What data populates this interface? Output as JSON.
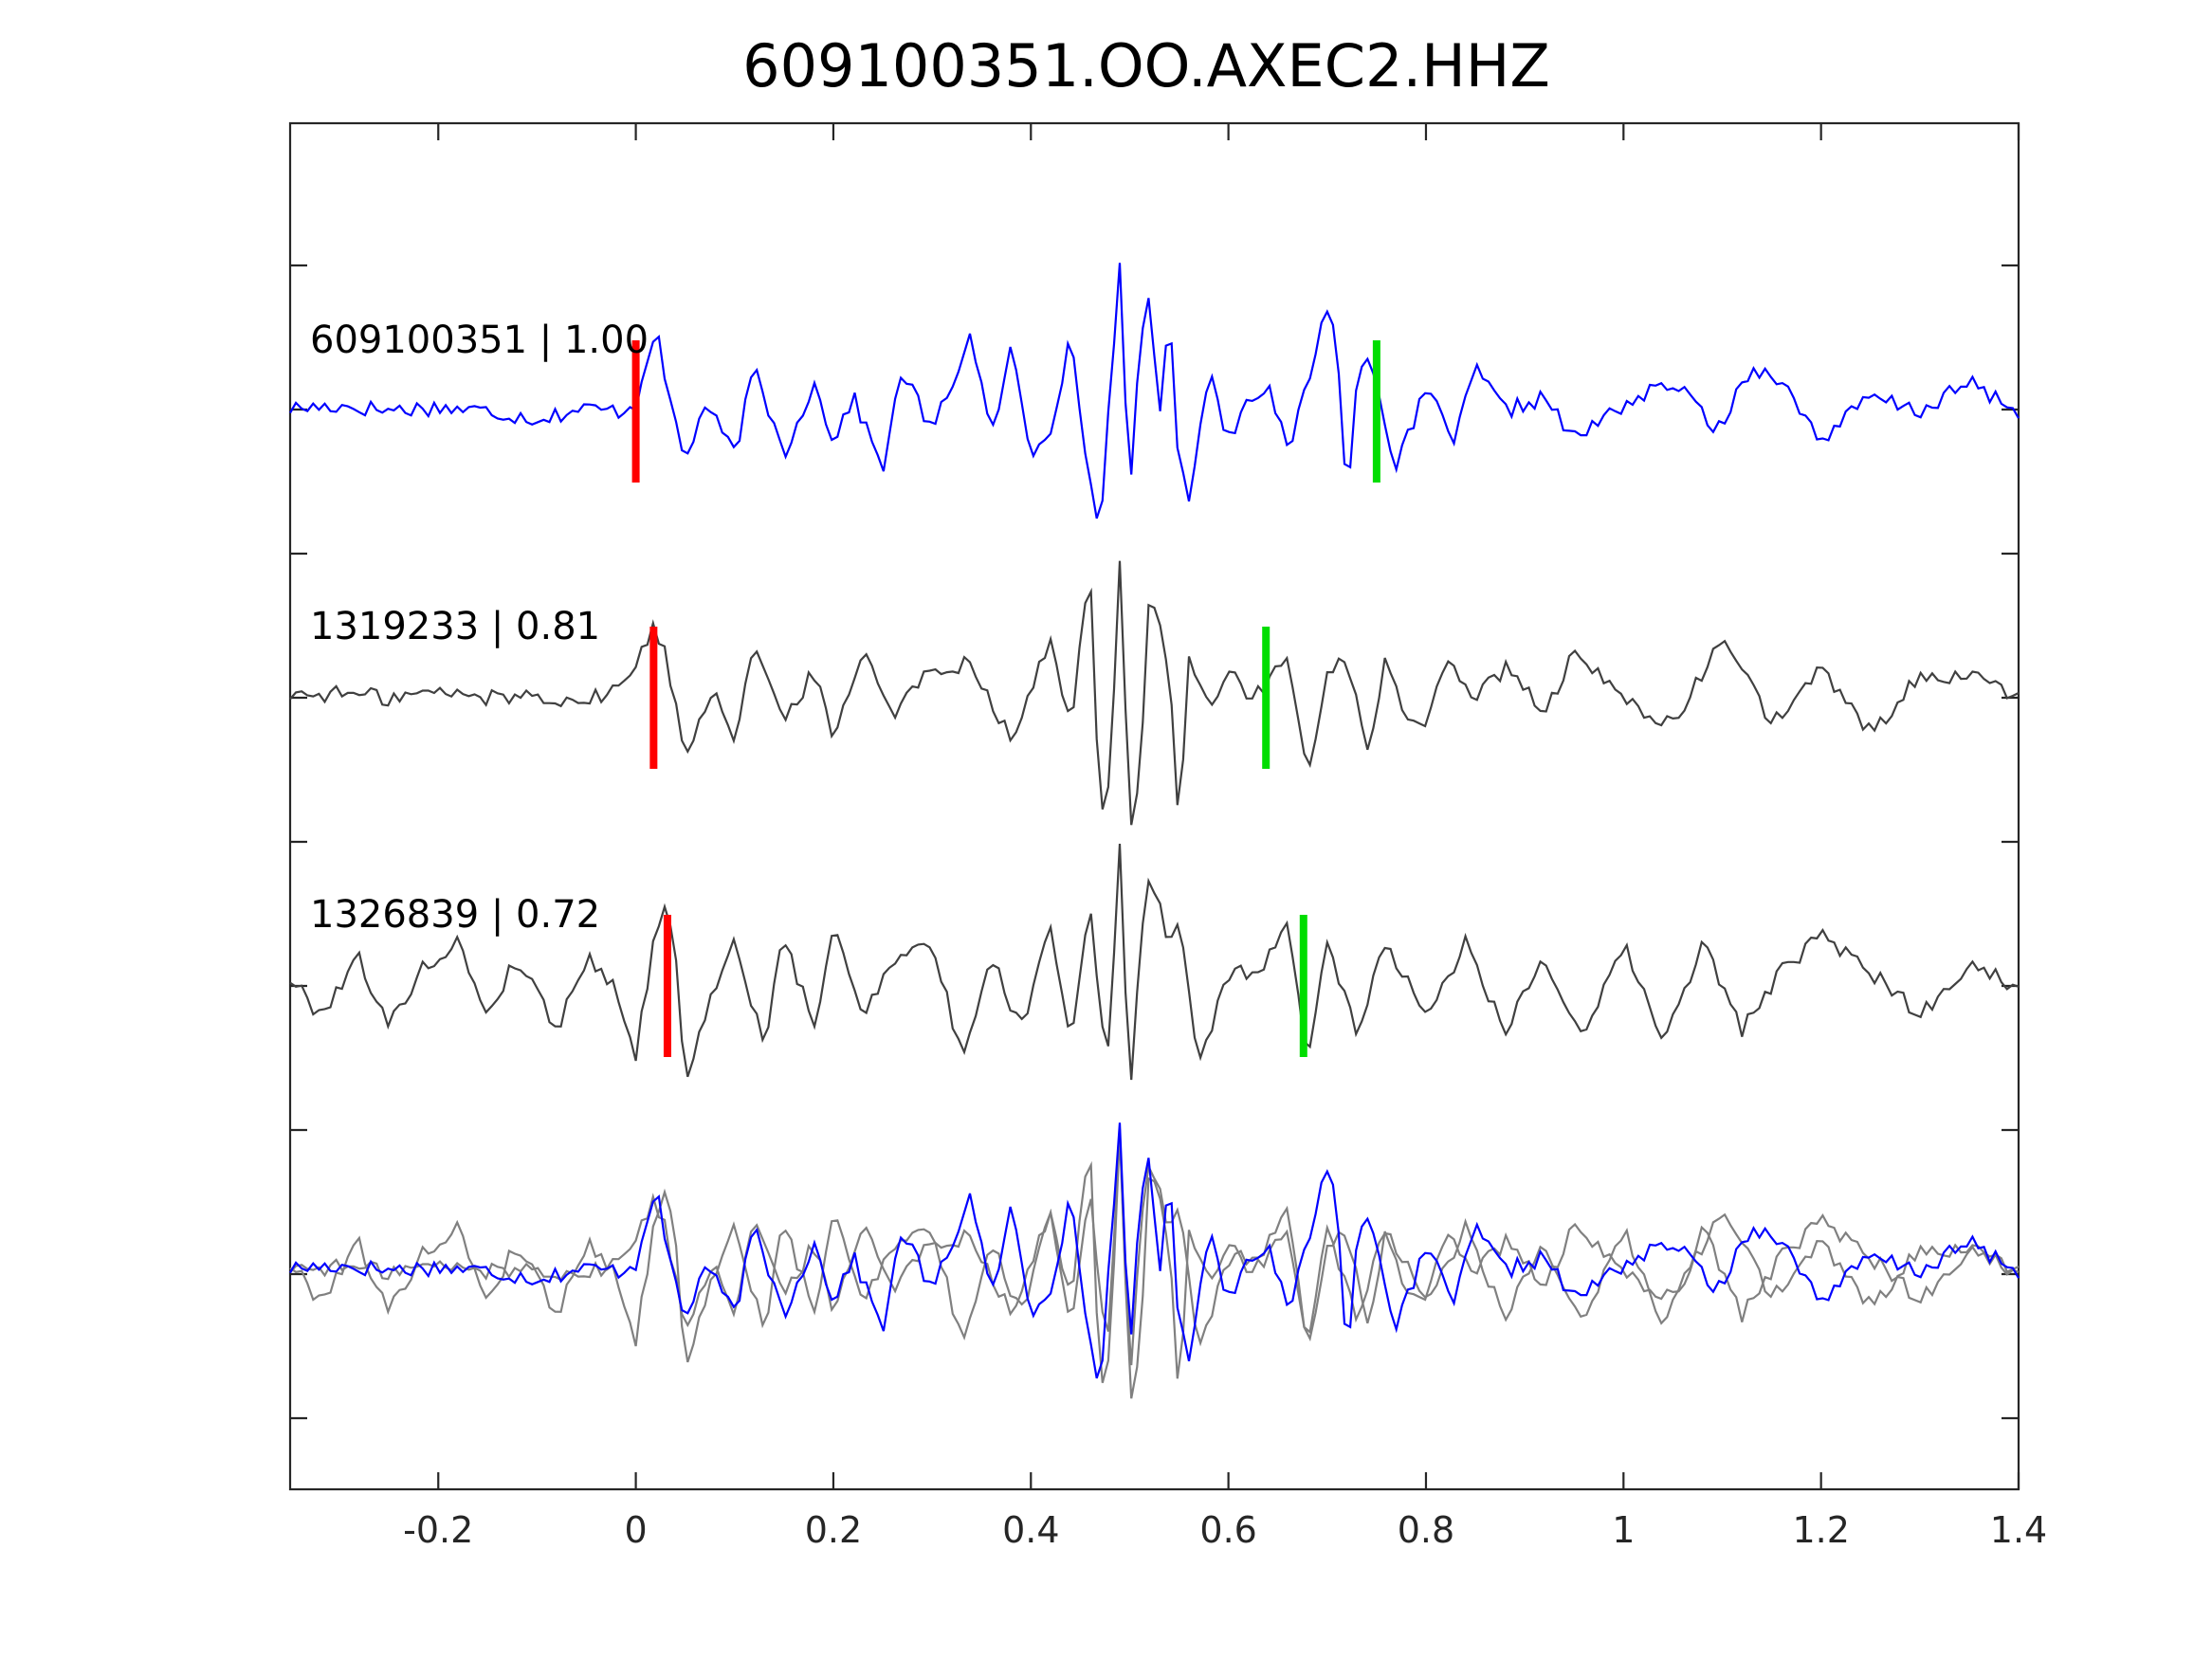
{
  "chart_data": {
    "type": "line",
    "title": "609100351.OO.AXEC2.HHZ",
    "xlabel": "",
    "ylabel": "",
    "xlim": [
      -0.35,
      1.4
    ],
    "x_ticks": [
      -0.2,
      0,
      0.2,
      0.4,
      0.6,
      0.8,
      1,
      1.2,
      1.4
    ],
    "x_tick_labels": [
      "-0.2",
      "0",
      "0.2",
      "0.4",
      "0.6",
      "0.8",
      "1",
      "1.2",
      "1.4"
    ],
    "y_tick_count": 9,
    "grid": false,
    "colors": {
      "primary_trace": "#0000ff",
      "other_trace": "#404040",
      "overlay_other": "#808080",
      "p_pick": "#ff0000",
      "s_pick": "#00dd00",
      "axes": "#262626"
    },
    "traces": [
      {
        "label": "609100351 | 1.00",
        "event_id": "609100351",
        "correlation": 1.0,
        "p_pick": 0.0,
        "s_pick": 0.75,
        "x": [
          -0.35,
          -0.3,
          -0.25,
          -0.2,
          -0.15,
          -0.1,
          -0.05,
          -0.02,
          0,
          0.01,
          0.02,
          0.03,
          0.05,
          0.07,
          0.1,
          0.12,
          0.15,
          0.18,
          0.2,
          0.22,
          0.25,
          0.27,
          0.3,
          0.34,
          0.36,
          0.38,
          0.4,
          0.42,
          0.44,
          0.46,
          0.47,
          0.48,
          0.49,
          0.5,
          0.51,
          0.52,
          0.53,
          0.54,
          0.55,
          0.56,
          0.58,
          0.6,
          0.62,
          0.64,
          0.66,
          0.68,
          0.7,
          0.71,
          0.72,
          0.73,
          0.74,
          0.75,
          0.77,
          0.8,
          0.83,
          0.85,
          0.88,
          0.92,
          0.95,
          1.0,
          1.05,
          1.1,
          1.12,
          1.15,
          1.2,
          1.25,
          1.3,
          1.35,
          1.4
        ],
        "y": [
          0.02,
          0.04,
          0.01,
          0.03,
          0.0,
          -0.05,
          0.02,
          0.0,
          0.05,
          0.35,
          0.6,
          0.2,
          -0.35,
          0.05,
          -0.3,
          0.3,
          -0.3,
          0.2,
          -0.2,
          0.1,
          -0.4,
          0.3,
          -0.15,
          0.55,
          -0.2,
          0.45,
          -0.3,
          -0.1,
          0.5,
          -0.5,
          -0.9,
          0.2,
          1.0,
          -0.7,
          0.5,
          0.8,
          0.0,
          0.7,
          -0.4,
          -0.6,
          0.3,
          -0.2,
          0.1,
          0.2,
          -0.3,
          0.2,
          0.75,
          0.5,
          -0.7,
          0.2,
          0.45,
          0.2,
          -0.4,
          0.15,
          -0.2,
          0.3,
          0.0,
          0.1,
          -0.2,
          0.05,
          0.2,
          -0.15,
          0.25,
          0.3,
          -0.2,
          0.1,
          0.0,
          0.2,
          0.0
        ]
      },
      {
        "label": "1319233 | 0.81",
        "event_id": "1319233",
        "correlation": 0.81,
        "p_pick": 0.018,
        "s_pick": 0.638,
        "x": [
          -0.35,
          -0.3,
          -0.25,
          -0.2,
          -0.15,
          -0.1,
          -0.05,
          -0.01,
          0.01,
          0.02,
          0.03,
          0.05,
          0.08,
          0.1,
          0.12,
          0.15,
          0.18,
          0.2,
          0.23,
          0.26,
          0.3,
          0.34,
          0.38,
          0.42,
          0.44,
          0.46,
          0.47,
          0.48,
          0.49,
          0.5,
          0.51,
          0.52,
          0.54,
          0.55,
          0.56,
          0.58,
          0.6,
          0.62,
          0.64,
          0.66,
          0.68,
          0.7,
          0.72,
          0.74,
          0.76,
          0.78,
          0.8,
          0.82,
          0.85,
          0.88,
          0.92,
          0.95,
          1.0,
          1.05,
          1.1,
          1.12,
          1.15,
          1.2,
          1.25,
          1.3,
          1.35,
          1.4
        ],
        "y": [
          0.02,
          0.03,
          0.0,
          0.04,
          0.0,
          0.02,
          -0.03,
          0.1,
          0.4,
          0.5,
          0.3,
          -0.4,
          0.1,
          -0.3,
          0.4,
          -0.2,
          0.2,
          -0.3,
          0.35,
          -0.1,
          0.2,
          0.25,
          -0.3,
          0.4,
          -0.2,
          0.9,
          -0.9,
          -0.6,
          1.0,
          -0.9,
          -0.6,
          0.8,
          0.2,
          -0.9,
          0.3,
          -0.1,
          0.2,
          0.0,
          0.1,
          0.3,
          -0.6,
          0.2,
          0.3,
          -0.4,
          0.3,
          -0.2,
          -0.2,
          0.3,
          0.0,
          0.2,
          -0.1,
          0.3,
          0.0,
          -0.2,
          0.4,
          0.25,
          -0.2,
          0.2,
          -0.25,
          0.15,
          0.15,
          0.0
        ]
      },
      {
        "label": "1326839 | 0.72",
        "event_id": "1326839",
        "correlation": 0.72,
        "p_pick": 0.032,
        "s_pick": 0.676,
        "x": [
          -0.35,
          -0.32,
          -0.28,
          -0.25,
          -0.22,
          -0.18,
          -0.15,
          -0.12,
          -0.08,
          -0.05,
          -0.02,
          0.0,
          0.02,
          0.03,
          0.04,
          0.05,
          0.07,
          0.1,
          0.13,
          0.15,
          0.18,
          0.2,
          0.23,
          0.26,
          0.3,
          0.33,
          0.36,
          0.39,
          0.42,
          0.44,
          0.46,
          0.47,
          0.48,
          0.49,
          0.5,
          0.51,
          0.52,
          0.53,
          0.54,
          0.55,
          0.57,
          0.6,
          0.63,
          0.66,
          0.68,
          0.7,
          0.73,
          0.76,
          0.8,
          0.84,
          0.88,
          0.92,
          0.96,
          1.0,
          1.04,
          1.08,
          1.12,
          1.16,
          1.2,
          1.25,
          1.3,
          1.35,
          1.4
        ],
        "y": [
          0.05,
          -0.2,
          0.2,
          -0.3,
          0.1,
          0.3,
          -0.2,
          0.2,
          -0.3,
          0.2,
          0.0,
          -0.5,
          0.4,
          0.6,
          0.2,
          -0.65,
          -0.2,
          0.3,
          -0.4,
          0.35,
          -0.3,
          0.4,
          -0.2,
          0.2,
          0.3,
          -0.5,
          0.2,
          -0.3,
          0.45,
          -0.4,
          0.6,
          -0.2,
          -0.4,
          1.0,
          -0.8,
          0.2,
          0.75,
          0.6,
          0.3,
          0.5,
          -0.6,
          0.1,
          0.1,
          0.4,
          -0.5,
          0.3,
          -0.3,
          0.3,
          -0.2,
          0.3,
          -0.3,
          0.2,
          -0.4,
          0.3,
          -0.4,
          0.3,
          -0.3,
          0.1,
          0.35,
          0.1,
          -0.2,
          0.15,
          0.0
        ]
      }
    ],
    "overlay": {
      "description_of_traces": "all traces superimposed",
      "colors": [
        "#0000ff",
        "#808080",
        "#808080"
      ]
    }
  }
}
